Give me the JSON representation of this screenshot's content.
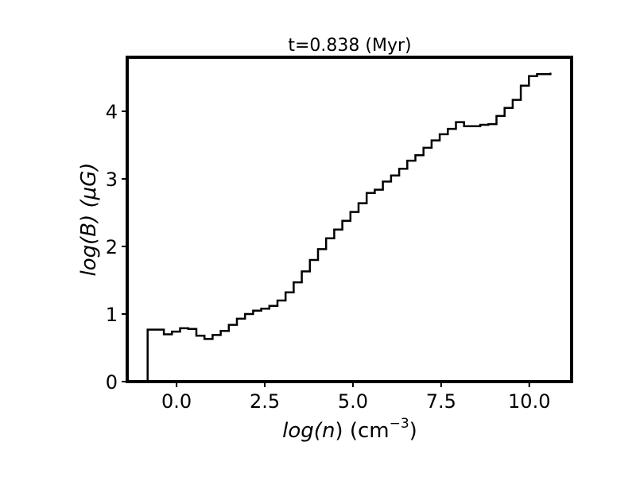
{
  "chart_data": {
    "type": "line",
    "style": "step-histogram",
    "title": "t=0.838 (Myr)",
    "xlabel": {
      "prefix": "log(",
      "variable": "n",
      "suffix": ") (cm",
      "superscript": "−3",
      "close": ")"
    },
    "ylabel": {
      "prefix": "log(",
      "variable": "B",
      "suffix": ") (",
      "unit": "μG",
      "close": ")"
    },
    "xlim": [
      -1.4,
      11.2
    ],
    "ylim": [
      0,
      4.8
    ],
    "xticks": [
      0.0,
      2.5,
      5.0,
      7.5,
      10.0
    ],
    "xtick_labels": [
      "0.0",
      "2.5",
      "5.0",
      "7.5",
      "10.0"
    ],
    "yticks": [
      0,
      1,
      2,
      3,
      4
    ],
    "ytick_labels": [
      "0",
      "1",
      "2",
      "3",
      "4"
    ],
    "grid": false,
    "line_color": "#000000",
    "bin_edges": [
      -0.82,
      -0.36,
      -0.13,
      0.1,
      0.33,
      0.56,
      0.79,
      1.02,
      1.25,
      1.48,
      1.71,
      1.94,
      2.17,
      2.4,
      2.63,
      2.86,
      3.09,
      3.32,
      3.55,
      3.78,
      4.01,
      4.24,
      4.47,
      4.7,
      4.93,
      5.16,
      5.39,
      5.62,
      5.85,
      6.08,
      6.31,
      6.54,
      6.77,
      7.0,
      7.23,
      7.46,
      7.69,
      7.92,
      8.15,
      8.38,
      8.61,
      8.84,
      9.07,
      9.3,
      9.53,
      9.76,
      9.99,
      10.22,
      10.6
    ],
    "values": [
      0.77,
      0.7,
      0.74,
      0.79,
      0.78,
      0.68,
      0.63,
      0.69,
      0.75,
      0.84,
      0.93,
      1.0,
      1.05,
      1.08,
      1.12,
      1.2,
      1.32,
      1.47,
      1.63,
      1.8,
      1.96,
      2.12,
      2.25,
      2.38,
      2.51,
      2.64,
      2.79,
      2.84,
      2.96,
      3.05,
      3.15,
      3.27,
      3.35,
      3.46,
      3.57,
      3.66,
      3.74,
      3.84,
      3.78,
      3.78,
      3.8,
      3.81,
      3.93,
      4.05,
      4.17,
      4.38,
      4.52,
      4.55,
      4.57
    ]
  }
}
